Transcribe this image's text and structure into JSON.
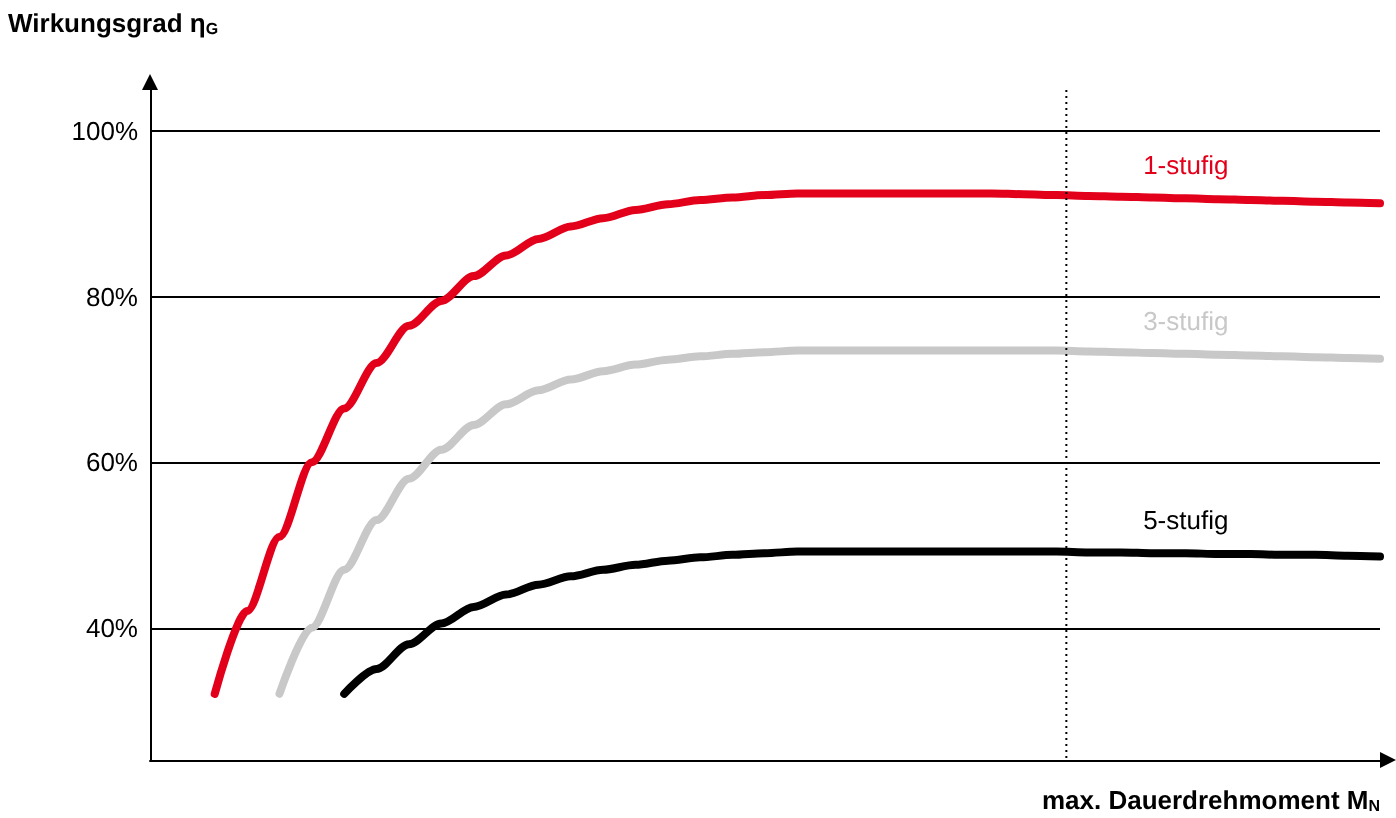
{
  "chart_data": {
    "type": "line",
    "title": "Wirkungsgrad η$_{G}$",
    "xlabel": "max. Dauerdrehmoment M$_{N}$",
    "categories": [
      null,
      null,
      null,
      null,
      null,
      null,
      null,
      null,
      null,
      null,
      null,
      null,
      null,
      null,
      null,
      null,
      null,
      null,
      null,
      null,
      null,
      null,
      null,
      null,
      null,
      null,
      null,
      null,
      null,
      null,
      null,
      null,
      null,
      null,
      null,
      null,
      null,
      null,
      null
    ],
    "series": [
      {
        "name": "1-stufig",
        "color": "#e3001b",
        "values": [
          null,
          null,
          32,
          42,
          51,
          60,
          66.5,
          72,
          76.5,
          79.5,
          82.5,
          85,
          87,
          88.5,
          89.5,
          90.5,
          91.2,
          91.7,
          92,
          92.3,
          92.5,
          92.5,
          92.5,
          92.5,
          92.5,
          92.5,
          92.5,
          92.4,
          92.3,
          92.2,
          92.1,
          92,
          91.9,
          91.8,
          91.7,
          91.6,
          91.5,
          91.4,
          91.3
        ]
      },
      {
        "name": "3-stufig",
        "color": "#c8c8c8",
        "values": [
          null,
          null,
          null,
          null,
          32,
          40,
          47,
          53,
          58,
          61.5,
          64.5,
          67,
          68.7,
          70,
          71,
          71.8,
          72.4,
          72.8,
          73.1,
          73.3,
          73.5,
          73.5,
          73.5,
          73.5,
          73.5,
          73.5,
          73.5,
          73.5,
          73.5,
          73.4,
          73.3,
          73.2,
          73.1,
          73,
          72.9,
          72.8,
          72.7,
          72.6,
          72.5
        ]
      },
      {
        "name": "5-stufig",
        "color": "#000000",
        "values": [
          null,
          null,
          null,
          null,
          null,
          null,
          32,
          35,
          38,
          40.5,
          42.5,
          44,
          45.2,
          46.2,
          47,
          47.6,
          48.1,
          48.5,
          48.8,
          49,
          49.2,
          49.2,
          49.2,
          49.2,
          49.2,
          49.2,
          49.2,
          49.2,
          49.2,
          49.1,
          49.1,
          49,
          49,
          48.9,
          48.9,
          48.8,
          48.8,
          48.7,
          48.6
        ]
      }
    ],
    "ylim": [
      24,
      105
    ],
    "yticks": [
      {
        "value": 40,
        "label": "40%"
      },
      {
        "value": 60,
        "label": "60%"
      },
      {
        "value": 80,
        "label": "80%"
      },
      {
        "value": 100,
        "label": "100%"
      }
    ],
    "grid": "y",
    "legend": false,
    "marker": "none",
    "line_style": "solid"
  }
}
